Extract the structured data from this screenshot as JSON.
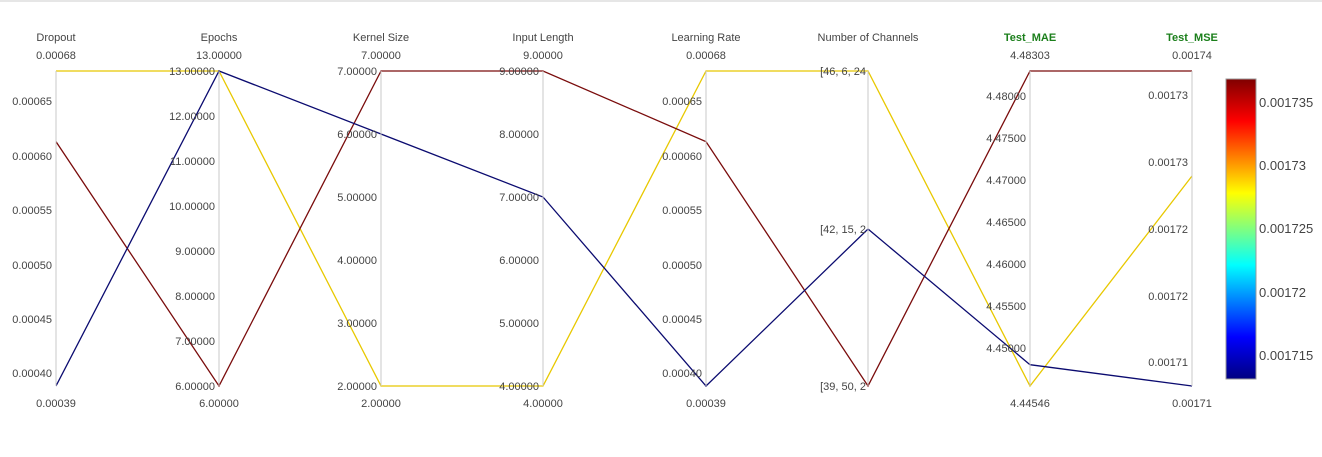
{
  "chart_data": {
    "type": "parallel_coordinates",
    "color_by": "Test_MSE",
    "axes": [
      {
        "name": "Dropout",
        "kind": "numeric",
        "max_label": "0.00068",
        "min_label": "0.00039",
        "ticks": [
          "0.00065",
          "0.00060",
          "0.00055",
          "0.00050",
          "0.00045",
          "0.00040"
        ],
        "highlight": false
      },
      {
        "name": "Epochs",
        "kind": "numeric",
        "max_label": "13.00000",
        "min_label": "6.00000",
        "ticks": [
          "13.00000",
          "12.00000",
          "11.00000",
          "10.00000",
          "9.00000",
          "8.00000",
          "7.00000",
          "6.00000"
        ],
        "highlight": false
      },
      {
        "name": "Kernel Size",
        "kind": "numeric",
        "max_label": "7.00000",
        "min_label": "2.00000",
        "ticks": [
          "7.00000",
          "6.00000",
          "5.00000",
          "4.00000",
          "3.00000",
          "2.00000"
        ],
        "highlight": false
      },
      {
        "name": "Input Length",
        "kind": "numeric",
        "max_label": "9.00000",
        "min_label": "4.00000",
        "ticks": [
          "9.00000",
          "8.00000",
          "7.00000",
          "6.00000",
          "5.00000",
          "4.00000"
        ],
        "highlight": false
      },
      {
        "name": "Learning Rate",
        "kind": "numeric",
        "max_label": "0.00068",
        "min_label": "0.00039",
        "ticks": [
          "0.00065",
          "0.00060",
          "0.00055",
          "0.00050",
          "0.00045",
          "0.00040"
        ],
        "highlight": false
      },
      {
        "name": "Number of Channels",
        "kind": "categorical",
        "max_label": "",
        "min_label": "",
        "ticks": [
          "[46, 6, 24",
          "[42, 15, 2",
          "[39, 50, 2"
        ],
        "highlight": false
      },
      {
        "name": "Test_MAE",
        "kind": "numeric",
        "max_label": "4.48303",
        "min_label": "4.44546",
        "ticks": [
          "4.48000",
          "4.47500",
          "4.47000",
          "4.46500",
          "4.46000",
          "4.45500",
          "4.45000"
        ],
        "highlight": true
      },
      {
        "name": "Test_MSE",
        "kind": "numeric",
        "max_label": "0.00174",
        "min_label": "0.00171",
        "ticks": [
          "0.00173",
          "0.00173",
          "0.00172",
          "0.00172",
          "0.00171"
        ],
        "highlight": true
      }
    ],
    "series": [
      {
        "color": "#e8c800",
        "values": {
          "Dropout": 0.00068,
          "Epochs": 13,
          "Kernel Size": 2,
          "Input Length": 4,
          "Learning Rate": 0.00068,
          "Number of Channels": "[46, 6, 24",
          "Test_MAE": 4.44546,
          "Test_MSE": 0.00173
        }
      },
      {
        "color": "#7a0c0c",
        "values": {
          "Dropout": 0.000615,
          "Epochs": 6,
          "Kernel Size": 7,
          "Input Length": 9,
          "Learning Rate": 0.000615,
          "Number of Channels": "[39, 50, 2",
          "Test_MAE": 4.48303,
          "Test_MSE": 0.00174
        }
      },
      {
        "color": "#0b0b70",
        "values": {
          "Dropout": 0.00039,
          "Epochs": 13,
          "Kernel Size": 6,
          "Input Length": 7,
          "Learning Rate": 0.00039,
          "Number of Channels": "[42, 15, 2",
          "Test_MAE": 4.448,
          "Test_MSE": 0.00171
        }
      }
    ],
    "colorbar": {
      "labels": [
        "0.001735",
        "0.00173",
        "0.001725",
        "0.00172",
        "0.001715"
      ],
      "stops": [
        "#800000",
        "#ff0000",
        "#ffff00",
        "#00ffff",
        "#0000ff",
        "#000080"
      ]
    }
  }
}
